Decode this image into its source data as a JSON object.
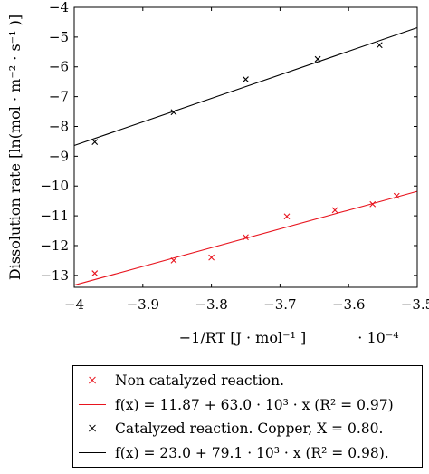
{
  "chart_data": {
    "type": "scatter",
    "xlabel": "−1/RT [J · mol⁻¹ ]",
    "ylabel": "Dissolution rate [ln(mol · m⁻² · s⁻¹ )]",
    "x_multiplier_label": "· 10⁻⁴",
    "xlim": [
      -4.0,
      -3.5
    ],
    "ylim": [
      -13.4,
      -4.0
    ],
    "x_ticks": [
      -4.0,
      -3.9,
      -3.8,
      -3.7,
      -3.6,
      -3.5
    ],
    "x_tick_labels": [
      "−4",
      "−3.9",
      "−3.8",
      "−3.7",
      "−3.6",
      "−3.5"
    ],
    "y_ticks": [
      -13,
      -12,
      -11,
      -10,
      -9,
      -8,
      -7,
      -6,
      -5,
      -4
    ],
    "y_tick_labels": [
      "−13",
      "−12",
      "−11",
      "−10",
      "−9",
      "−8",
      "−7",
      "−6",
      "−5",
      "−4"
    ],
    "grid": false,
    "legend_position": "below",
    "series": [
      {
        "name": "Non catalyzed reaction.",
        "kind": "scatter",
        "marker": "x",
        "color": "#e8141e",
        "x": [
          -3.97,
          -3.855,
          -3.8,
          -3.75,
          -3.69,
          -3.62,
          -3.565,
          -3.53
        ],
        "y": [
          -12.93,
          -12.5,
          -12.4,
          -11.72,
          -11.02,
          -10.81,
          -10.61,
          -10.33
        ]
      },
      {
        "name": "f(x) = 11.87 + 63.0 · 10³ · x (R² = 0.97)",
        "kind": "line",
        "color": "#e8141e",
        "intercept": 11.87,
        "slope": 63000,
        "x_scale": 0.0001
      },
      {
        "name": "Catalyzed reaction. Copper, X = 0.80.",
        "kind": "scatter",
        "marker": "x",
        "color": "#000000",
        "x": [
          -3.97,
          -3.855,
          -3.75,
          -3.645,
          -3.555
        ],
        "y": [
          -8.52,
          -7.52,
          -6.42,
          -5.74,
          -5.27
        ]
      },
      {
        "name": "f(x) = 23.0 + 79.1 · 10³ · x (R² = 0.98).",
        "kind": "line",
        "color": "#000000",
        "intercept": 23.0,
        "slope": 79100,
        "x_scale": 0.0001
      }
    ]
  },
  "legend": {
    "entries": [
      {
        "label": "Non catalyzed reaction.",
        "symbol": "cross",
        "color": "#e8141e"
      },
      {
        "label": "f(x) = 11.87 + 63.0 · 10³ · x (R² = 0.97)",
        "symbol": "line",
        "color": "#e8141e"
      },
      {
        "label": "Catalyzed reaction. Copper, X = 0.80.",
        "symbol": "cross",
        "color": "#000000"
      },
      {
        "label": "f(x) = 23.0 + 79.1 · 10³ · x (R² = 0.98).",
        "symbol": "line",
        "color": "#000000"
      }
    ]
  }
}
